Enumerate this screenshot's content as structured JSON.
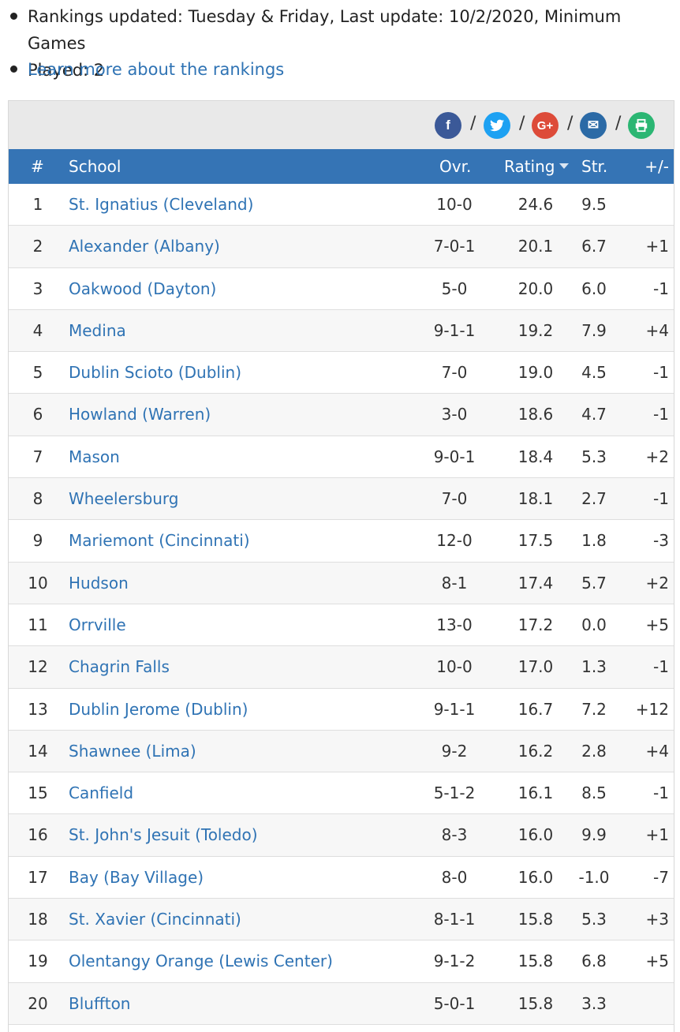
{
  "notes": {
    "update_line1": "Rankings updated: Tuesday & Friday, Last update: 10/2/2020, Minimum Games",
    "update_line2": "Played: 2",
    "learn_more": "Learn more about the rankings"
  },
  "share": {
    "facebook": "f",
    "twitter": "t",
    "google": "G+",
    "email": "✉",
    "print": "⎙",
    "separator": "/",
    "colors": {
      "facebook": "#3b5998",
      "twitter": "#1da1f2",
      "google": "#dd4b39",
      "email": "#2b6aa6",
      "print": "#2bb673"
    }
  },
  "table": {
    "headers": {
      "rank": "#",
      "school": "School",
      "ovr": "Ovr.",
      "rating": "Rating",
      "str": "Str.",
      "pm": "+/-"
    },
    "rows": [
      {
        "rank": "1",
        "school": "St. Ignatius (Cleveland)",
        "ovr": "10-0",
        "rating": "24.6",
        "str": "9.5",
        "pm": ""
      },
      {
        "rank": "2",
        "school": "Alexander (Albany)",
        "ovr": "7-0-1",
        "rating": "20.1",
        "str": "6.7",
        "pm": "+1"
      },
      {
        "rank": "3",
        "school": "Oakwood (Dayton)",
        "ovr": "5-0",
        "rating": "20.0",
        "str": "6.0",
        "pm": "-1"
      },
      {
        "rank": "4",
        "school": "Medina",
        "ovr": "9-1-1",
        "rating": "19.2",
        "str": "7.9",
        "pm": "+4"
      },
      {
        "rank": "5",
        "school": "Dublin Scioto (Dublin)",
        "ovr": "7-0",
        "rating": "19.0",
        "str": "4.5",
        "pm": "-1"
      },
      {
        "rank": "6",
        "school": "Howland (Warren)",
        "ovr": "3-0",
        "rating": "18.6",
        "str": "4.7",
        "pm": "-1"
      },
      {
        "rank": "7",
        "school": "Mason",
        "ovr": "9-0-1",
        "rating": "18.4",
        "str": "5.3",
        "pm": "+2"
      },
      {
        "rank": "8",
        "school": "Wheelersburg",
        "ovr": "7-0",
        "rating": "18.1",
        "str": "2.7",
        "pm": "-1"
      },
      {
        "rank": "9",
        "school": "Mariemont (Cincinnati)",
        "ovr": "12-0",
        "rating": "17.5",
        "str": "1.8",
        "pm": "-3"
      },
      {
        "rank": "10",
        "school": "Hudson",
        "ovr": "8-1",
        "rating": "17.4",
        "str": "5.7",
        "pm": "+2"
      },
      {
        "rank": "11",
        "school": "Orrville",
        "ovr": "13-0",
        "rating": "17.2",
        "str": "0.0",
        "pm": "+5"
      },
      {
        "rank": "12",
        "school": "Chagrin Falls",
        "ovr": "10-0",
        "rating": "17.0",
        "str": "1.3",
        "pm": "-1"
      },
      {
        "rank": "13",
        "school": "Dublin Jerome (Dublin)",
        "ovr": "9-1-1",
        "rating": "16.7",
        "str": "7.2",
        "pm": "+12"
      },
      {
        "rank": "14",
        "school": "Shawnee (Lima)",
        "ovr": "9-2",
        "rating": "16.2",
        "str": "2.8",
        "pm": "+4"
      },
      {
        "rank": "15",
        "school": "Canfield",
        "ovr": "5-1-2",
        "rating": "16.1",
        "str": "8.5",
        "pm": "-1"
      },
      {
        "rank": "16",
        "school": "St. John's Jesuit (Toledo)",
        "ovr": "8-3",
        "rating": "16.0",
        "str": "9.9",
        "pm": "+1"
      },
      {
        "rank": "17",
        "school": "Bay (Bay Village)",
        "ovr": "8-0",
        "rating": "16.0",
        "str": "-1.0",
        "pm": "-7"
      },
      {
        "rank": "18",
        "school": "St. Xavier (Cincinnati)",
        "ovr": "8-1-1",
        "rating": "15.8",
        "str": "5.3",
        "pm": "+3"
      },
      {
        "rank": "19",
        "school": "Olentangy Orange (Lewis Center)",
        "ovr": "9-1-2",
        "rating": "15.8",
        "str": "6.8",
        "pm": "+5"
      },
      {
        "rank": "20",
        "school": "Bluffton",
        "ovr": "5-0-1",
        "rating": "15.8",
        "str": "3.3",
        "pm": ""
      }
    ]
  }
}
